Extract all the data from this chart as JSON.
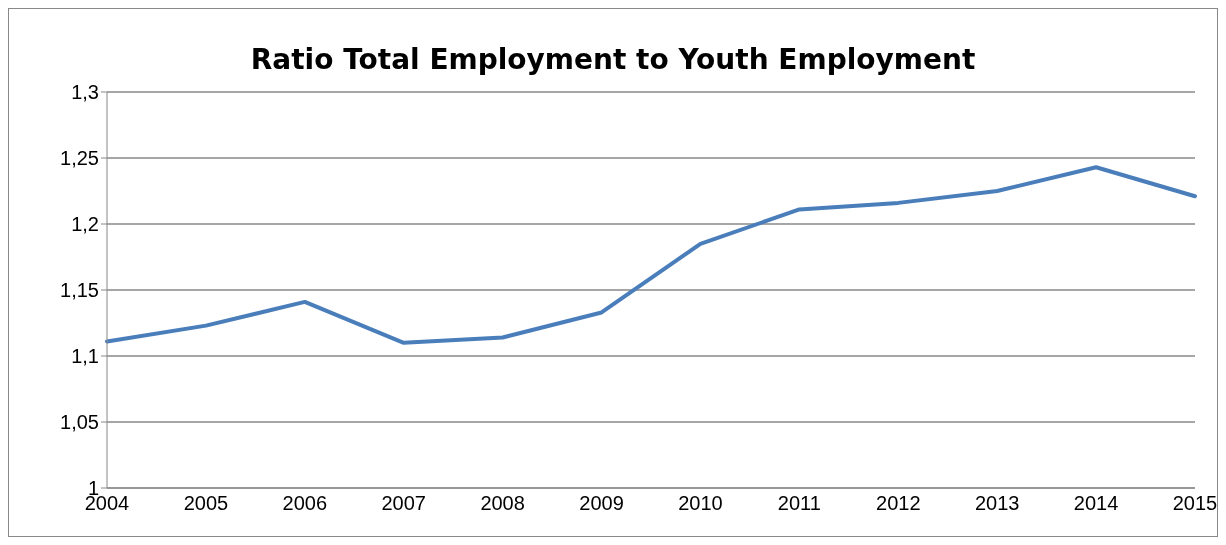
{
  "chart_data": {
    "type": "line",
    "title": "Ratio Total Employment to Youth Employment",
    "categories": [
      "2004",
      "2005",
      "2006",
      "2007",
      "2008",
      "2009",
      "2010",
      "2011",
      "2012",
      "2013",
      "2014",
      "2015"
    ],
    "series": [
      {
        "color": "#4a7ebb",
        "values": [
          1.111,
          1.123,
          1.141,
          1.11,
          1.114,
          1.133,
          1.185,
          1.211,
          1.216,
          1.225,
          1.243,
          1.221
        ]
      }
    ],
    "ylim": [
      1,
      1.3
    ],
    "yticks": [
      {
        "value": 1,
        "label": "1"
      },
      {
        "value": 1.05,
        "label": "1,05"
      },
      {
        "value": 1.1,
        "label": "1,1"
      },
      {
        "value": 1.15,
        "label": "1,15"
      },
      {
        "value": 1.2,
        "label": "1,2"
      },
      {
        "value": 1.25,
        "label": "1,25"
      },
      {
        "value": 1.3,
        "label": "1,3"
      }
    ],
    "grid": "y",
    "legend": false,
    "marker": "none",
    "line_style": "solid"
  }
}
